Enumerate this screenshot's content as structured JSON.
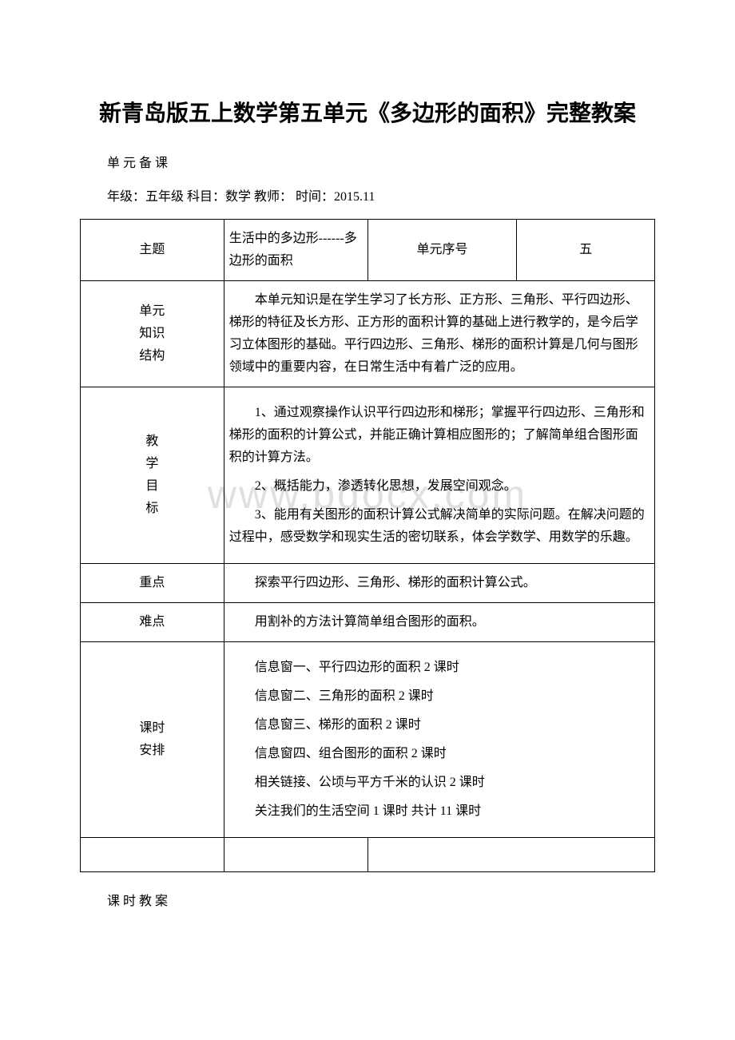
{
  "watermark": "www.bdocx.com",
  "title": "新青岛版五上数学第五单元《多边形的面积》完整教案",
  "subtitle": "单 元 备 课",
  "info_line": "年级：五年级 科目：数学 教师：  时间：2015.11",
  "table": {
    "row1": {
      "label": "主题",
      "value": "生活中的多边形------多边形的面积",
      "unit_label": "单元序号",
      "unit_value": "五"
    },
    "row2": {
      "label_lines": [
        "单元",
        "知识",
        "结构"
      ],
      "content": "本单元知识是在学生学习了长方形、正方形、三角形、平行四边形、梯形的特征及长方形、正方形的面积计算的基础上进行教学的，是今后学习立体图形的基础。平行四边形、三角形、梯形的面积计算是几何与图形领域中的重要内容，在日常生活中有着广泛的应用。"
    },
    "row3": {
      "label_lines": [
        "教",
        "学",
        "目",
        "标"
      ],
      "p1": "1、通过观察操作认识平行四边形和梯形；掌握平行四边形、三角形和梯形的面积的计算公式，并能正确计算相应图形的；了解简单组合图形面积的计算方法。",
      "p2": "2、概括能力，渗透转化思想，发展空间观念。",
      "p3": "3、能用有关图形的面积计算公式解决简单的实际问题。在解决问题的过程中，感受数学和现实生活的密切联系，体会学数学、用数学的乐趣。"
    },
    "row4": {
      "label": "重点",
      "content": "探索平行四边形、三角形、梯形的面积计算公式。"
    },
    "row5": {
      "label": "难点",
      "content": "用割补的方法计算简单组合图形的面积。"
    },
    "row6": {
      "label_lines": [
        "课时",
        "安排"
      ],
      "lines": [
        "信息窗一、平行四边形的面积 2 课时",
        "信息窗二、三角形的面积 2 课时",
        "信息窗三、梯形的面积 2 课时",
        "信息窗四、组合图形的面积 2 课时",
        "相关链接、公顷与平方千米的认识 2 课时",
        "关注我们的生活空间 1 课时 共计 11 课时"
      ]
    }
  },
  "footer": "课 时 教 案",
  "colors": {
    "text": "#000000",
    "border": "#000000",
    "background": "#ffffff",
    "watermark": "#e0e0e0"
  }
}
